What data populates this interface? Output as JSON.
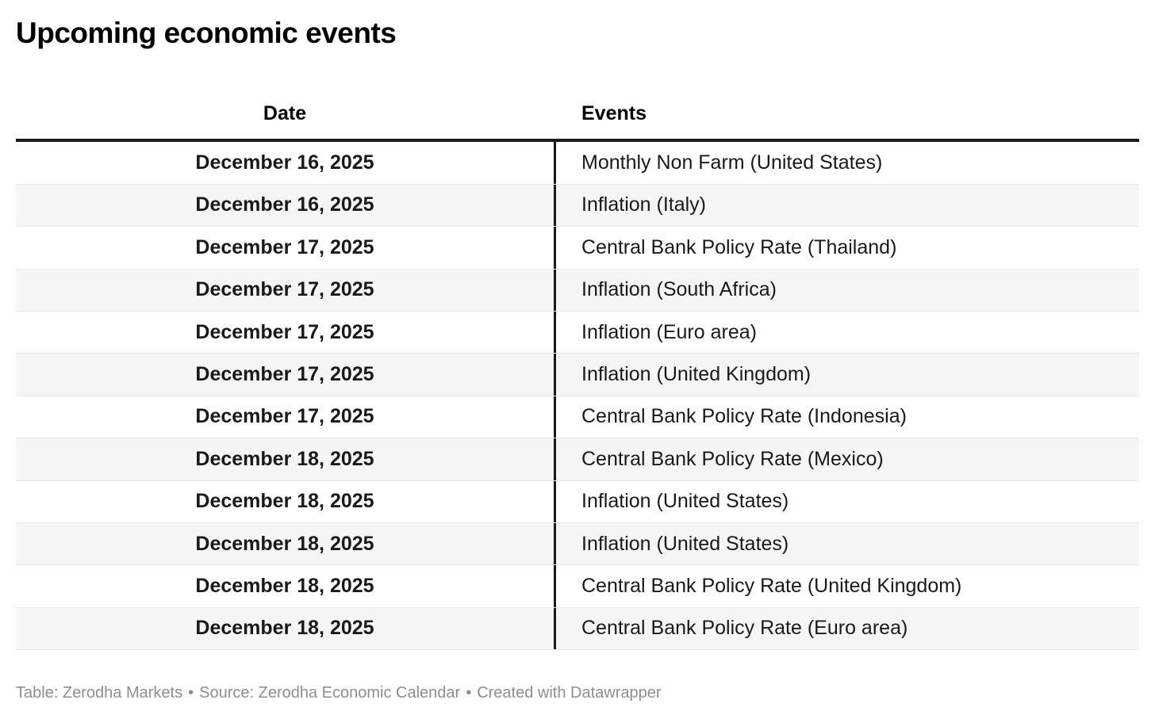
{
  "chart_data": {
    "type": "table",
    "title": "Upcoming economic events",
    "columns": [
      "Date",
      "Events"
    ],
    "rows": [
      [
        "December 16, 2025",
        "Monthly Non Farm (United States)"
      ],
      [
        "December 16, 2025",
        "Inflation (Italy)"
      ],
      [
        "December 17, 2025",
        "Central Bank Policy Rate (Thailand)"
      ],
      [
        "December 17, 2025",
        "Inflation (South Africa)"
      ],
      [
        "December 17, 2025",
        "Inflation (Euro area)"
      ],
      [
        "December 17, 2025",
        "Inflation (United Kingdom)"
      ],
      [
        "December 17, 2025",
        "Central Bank Policy Rate (Indonesia)"
      ],
      [
        "December 18, 2025",
        "Central Bank Policy Rate (Mexico)"
      ],
      [
        "December 18, 2025",
        "Inflation (United States)"
      ],
      [
        "December 18, 2025",
        "Inflation (United States)"
      ],
      [
        "December 18, 2025",
        "Central Bank Policy Rate (United Kingdom)"
      ],
      [
        "December 18, 2025",
        "Central Bank Policy Rate (Euro area)"
      ]
    ],
    "layout_hints": {
      "alternating_row_shading": true,
      "date_column_alignment": "center",
      "events_column_alignment": "left",
      "header_rule": "thick-black",
      "column_divider": "vertical-black-line"
    }
  },
  "footer": {
    "table_credit": "Table: Zerodha Markets",
    "source_credit": "Source: Zerodha Economic Calendar",
    "created_credit": "Created with Datawrapper",
    "separator": "•"
  },
  "colors": {
    "text": "#191919",
    "title": "#000000",
    "rule": "#191919",
    "row_alt_bg": "#f5f5f5",
    "row_border": "#e8e8e8",
    "footer_text": "#8e8e8e"
  }
}
